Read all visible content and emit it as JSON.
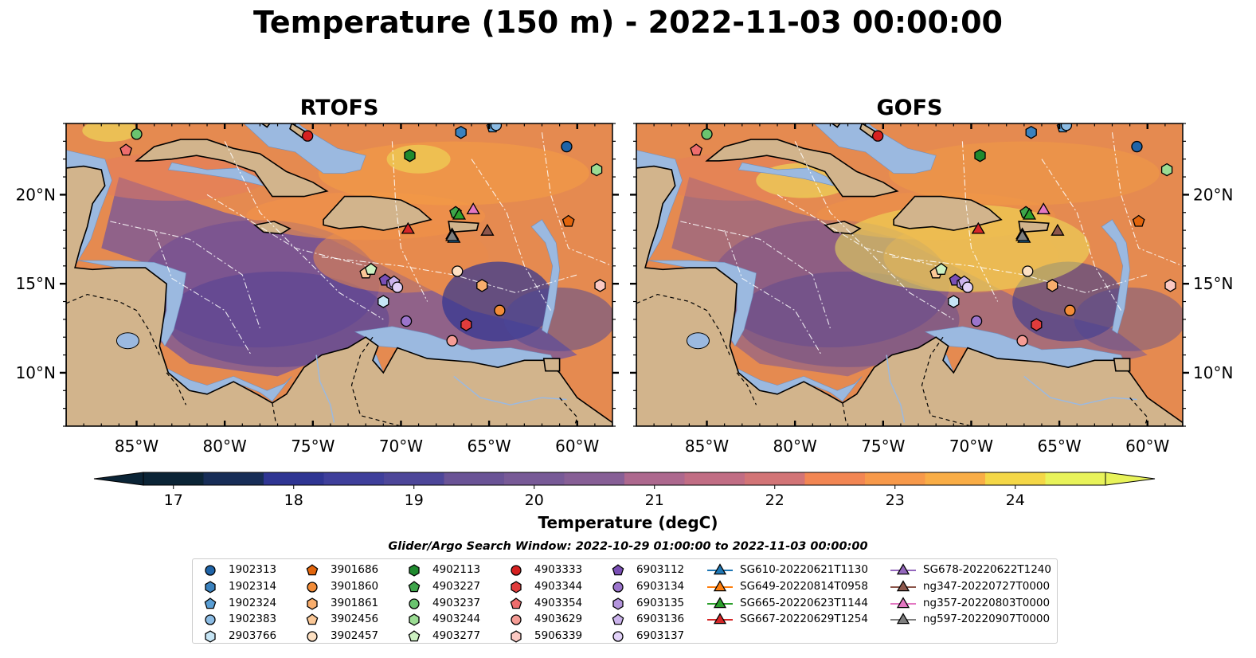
{
  "title": "Temperature (150 m) - 2022-11-03 00:00:00",
  "panels": [
    {
      "title": "RTOFS"
    },
    {
      "title": "GOFS"
    }
  ],
  "axes": {
    "lon_ticks": [
      "85°W",
      "80°W",
      "75°W",
      "70°W",
      "65°W",
      "60°W"
    ],
    "lat_ticks": [
      "20°N",
      "15°N",
      "10°N"
    ]
  },
  "colorbar": {
    "label": "Temperature (degC)",
    "ticks": [
      "17",
      "18",
      "19",
      "20",
      "21",
      "22",
      "23",
      "24"
    ],
    "min": 16.75,
    "max": 24.75,
    "extend": "both",
    "colors": [
      "#0b2436",
      "#172d57",
      "#24317a",
      "#2f3593",
      "#3f3f9b",
      "#4d4699",
      "#5a4c97",
      "#6a5396",
      "#785a97",
      "#875f96",
      "#9a6392",
      "#ad688e",
      "#c16d84",
      "#d27476",
      "#e57b63",
      "#f28653",
      "#f7994a",
      "#f9ad46",
      "#f8c044",
      "#f4d747",
      "#e8f35a"
    ]
  },
  "search_window": "Glider/Argo Search Window: 2022-10-29 01:00:00 to 2022-11-03 00:00:00",
  "legend": {
    "columns": [
      [
        {
          "label": "1902313",
          "marker": "circle",
          "color": "#1f64a8"
        },
        {
          "label": "1902314",
          "marker": "hexagon",
          "color": "#3b82be"
        },
        {
          "label": "1902324",
          "marker": "pentagon",
          "color": "#5a9ed4"
        },
        {
          "label": "1902383",
          "marker": "circle",
          "color": "#8cbce4"
        },
        {
          "label": "2903766",
          "marker": "hexagon",
          "color": "#c6e5f5"
        }
      ],
      [
        {
          "label": "3901686",
          "marker": "pentagon",
          "color": "#e2650c"
        },
        {
          "label": "3901860",
          "marker": "circle",
          "color": "#f28c38"
        },
        {
          "label": "3901861",
          "marker": "hexagon",
          "color": "#f8ad6c"
        },
        {
          "label": "3902456",
          "marker": "pentagon",
          "color": "#fbc897"
        },
        {
          "label": "3902457",
          "marker": "circle",
          "color": "#fde0c2"
        }
      ],
      [
        {
          "label": "4902113",
          "marker": "hexagon",
          "color": "#1f8a2e"
        },
        {
          "label": "4903227",
          "marker": "pentagon",
          "color": "#3ea54a"
        },
        {
          "label": "4903237",
          "marker": "circle",
          "color": "#6ac46f"
        },
        {
          "label": "4903244",
          "marker": "hexagon",
          "color": "#9bdc93"
        },
        {
          "label": "4903277",
          "marker": "pentagon",
          "color": "#cdf1c2"
        }
      ],
      [
        {
          "label": "4903333",
          "marker": "circle",
          "color": "#d62020"
        },
        {
          "label": "4903344",
          "marker": "hexagon",
          "color": "#e03c3c"
        },
        {
          "label": "4903354",
          "marker": "pentagon",
          "color": "#ee6d6d"
        },
        {
          "label": "4903629",
          "marker": "circle",
          "color": "#f59c95"
        },
        {
          "label": "5906339",
          "marker": "hexagon",
          "color": "#fbc9c3"
        }
      ],
      [
        {
          "label": "6903112",
          "marker": "pentagon",
          "color": "#7a4fb5"
        },
        {
          "label": "6903134",
          "marker": "circle",
          "color": "#9b74cc"
        },
        {
          "label": "6903135",
          "marker": "hexagon",
          "color": "#b394dc"
        },
        {
          "label": "6903136",
          "marker": "pentagon",
          "color": "#cbb3ec"
        },
        {
          "label": "6903137",
          "marker": "circle",
          "color": "#e2d2f8"
        }
      ],
      [
        {
          "label": "SG610-20220621T1130",
          "marker": "triangle",
          "color": "#1f77b4"
        },
        {
          "label": "SG649-20220814T0958",
          "marker": "triangle",
          "color": "#ff7f0e"
        },
        {
          "label": "SG665-20220623T1144",
          "marker": "triangle",
          "color": "#2ca02c"
        },
        {
          "label": "SG667-20220629T1254",
          "marker": "triangle",
          "color": "#d62728"
        }
      ],
      [
        {
          "label": "SG678-20220622T1240",
          "marker": "triangle",
          "color": "#9467bd"
        },
        {
          "label": "ng347-20220727T0000",
          "marker": "triangle",
          "color": "#8c564b"
        },
        {
          "label": "ng357-20220803T0000",
          "marker": "triangle",
          "color": "#e377c2"
        },
        {
          "label": "ng597-20220907T0000",
          "marker": "triangle",
          "color": "#7f7f7f"
        }
      ]
    ]
  },
  "map": {
    "lon_range": [
      -89,
      -58
    ],
    "lat_range": [
      7,
      24
    ],
    "colors": {
      "land": "#d2b48c",
      "shelf": "#9bb9e0",
      "pacific": "#0b2436",
      "basin": "#7a5797",
      "warm": "#e58a50"
    },
    "floats": [
      {
        "id": "1902313",
        "lon": -60.6,
        "lat": 22.7
      },
      {
        "id": "1902314",
        "lon": -66.6,
        "lat": 23.5
      },
      {
        "id": "1902324",
        "lon": -64.8,
        "lat": 23.8
      },
      {
        "id": "1902383",
        "lon": -64.6,
        "lat": 23.9
      },
      {
        "id": "2903766",
        "lon": -71.0,
        "lat": 14.0
      },
      {
        "id": "3901686",
        "lon": -60.5,
        "lat": 18.5
      },
      {
        "id": "3901860",
        "lon": -64.4,
        "lat": 13.5
      },
      {
        "id": "3901861",
        "lon": -65.4,
        "lat": 14.9
      },
      {
        "id": "3902456",
        "lon": -72.0,
        "lat": 15.6
      },
      {
        "id": "3902457",
        "lon": -66.8,
        "lat": 15.7
      },
      {
        "id": "4902113",
        "lon": -69.5,
        "lat": 22.2
      },
      {
        "id": "4903227",
        "lon": -66.9,
        "lat": 19.0
      },
      {
        "id": "4903237",
        "lon": -85.0,
        "lat": 23.4
      },
      {
        "id": "4903244",
        "lon": -58.9,
        "lat": 21.4
      },
      {
        "id": "4903277",
        "lon": -71.7,
        "lat": 15.8
      },
      {
        "id": "4903333",
        "lon": -75.3,
        "lat": 23.3
      },
      {
        "id": "4903344",
        "lon": -66.3,
        "lat": 12.7
      },
      {
        "id": "4903354",
        "lon": -85.6,
        "lat": 22.5
      },
      {
        "id": "4903629",
        "lon": -67.1,
        "lat": 11.8
      },
      {
        "id": "5906339",
        "lon": -58.7,
        "lat": 14.9
      },
      {
        "id": "6903112",
        "lon": -70.9,
        "lat": 15.2
      },
      {
        "id": "6903134",
        "lon": -69.7,
        "lat": 12.9
      },
      {
        "id": "6903135",
        "lon": -70.5,
        "lat": 15.0
      },
      {
        "id": "6903136",
        "lon": -70.4,
        "lat": 15.1
      },
      {
        "id": "6903137",
        "lon": -70.2,
        "lat": 14.8
      }
    ],
    "gliders": [
      {
        "id": "SG610-20220621T1130",
        "lon": -67.0,
        "lat": 17.6
      },
      {
        "id": "SG665-20220623T1144",
        "lon": -66.7,
        "lat": 18.9
      },
      {
        "id": "SG667-20220629T1254",
        "lon": -69.6,
        "lat": 18.1
      },
      {
        "id": "SG678-20220622T1240",
        "lon": -67.1,
        "lat": 17.8
      },
      {
        "id": "ng347-20220727T0000",
        "lon": -65.1,
        "lat": 18.0
      },
      {
        "id": "ng357-20220803T0000",
        "lon": -65.9,
        "lat": 19.2
      },
      {
        "id": "ng597-20220907T0000",
        "lon": -67.1,
        "lat": 17.7
      }
    ]
  }
}
